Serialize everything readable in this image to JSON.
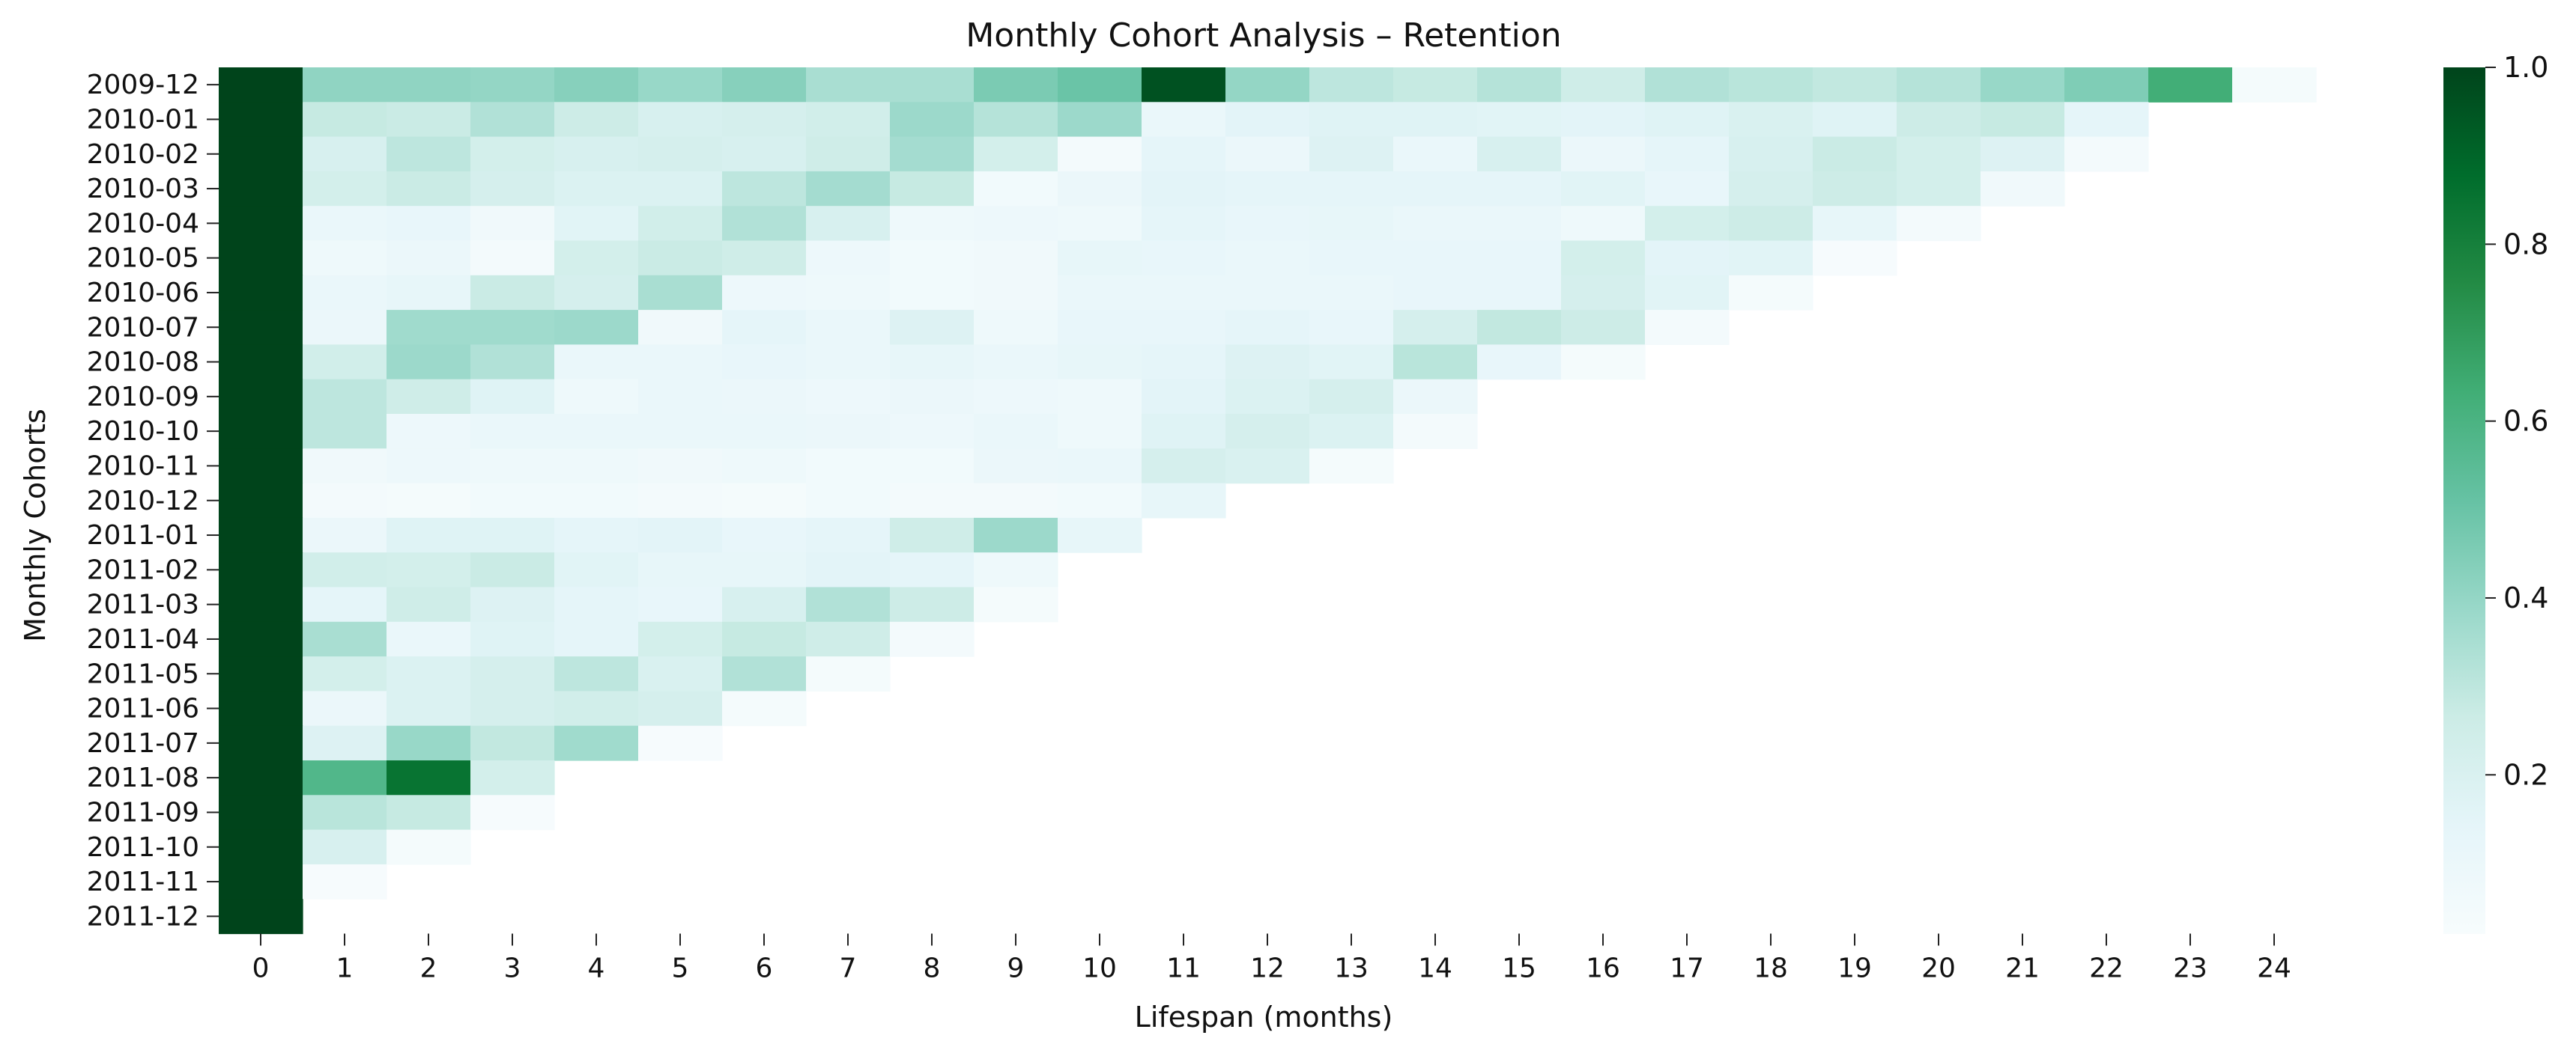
{
  "chart_data": {
    "type": "heatmap",
    "title": "Monthly Cohort Analysis – Retention",
    "xlabel": "Lifespan (months)",
    "ylabel": "Monthly Cohorts",
    "x": [
      "0",
      "1",
      "2",
      "3",
      "4",
      "5",
      "6",
      "7",
      "8",
      "9",
      "10",
      "11",
      "12",
      "13",
      "14",
      "15",
      "16",
      "17",
      "18",
      "19",
      "20",
      "21",
      "22",
      "23",
      "24"
    ],
    "y": [
      "2009-12",
      "2010-01",
      "2010-02",
      "2010-03",
      "2010-04",
      "2010-05",
      "2010-06",
      "2010-07",
      "2010-08",
      "2010-09",
      "2010-10",
      "2010-11",
      "2010-12",
      "2011-01",
      "2011-02",
      "2011-03",
      "2011-04",
      "2011-05",
      "2011-06",
      "2011-07",
      "2011-08",
      "2011-09",
      "2011-10",
      "2011-11",
      "2011-12"
    ],
    "values": [
      [
        1.0,
        0.41,
        0.41,
        0.4,
        0.43,
        0.39,
        0.43,
        0.35,
        0.35,
        0.46,
        0.5,
        0.96,
        0.4,
        0.3,
        0.28,
        0.32,
        0.25,
        0.33,
        0.31,
        0.29,
        0.32,
        0.39,
        0.45,
        0.63,
        0.04
      ],
      [
        1.0,
        0.28,
        0.27,
        0.33,
        0.26,
        0.21,
        0.22,
        0.24,
        0.38,
        0.32,
        0.38,
        0.11,
        0.15,
        0.17,
        0.17,
        0.16,
        0.15,
        0.17,
        0.2,
        0.17,
        0.26,
        0.28,
        0.14
      ],
      [
        1.0,
        0.21,
        0.3,
        0.23,
        0.21,
        0.22,
        0.21,
        0.25,
        0.36,
        0.23,
        0.05,
        0.14,
        0.1,
        0.18,
        0.11,
        0.21,
        0.1,
        0.14,
        0.21,
        0.27,
        0.23,
        0.18,
        0.05
      ],
      [
        1.0,
        0.23,
        0.27,
        0.22,
        0.19,
        0.19,
        0.3,
        0.36,
        0.28,
        0.06,
        0.1,
        0.15,
        0.14,
        0.14,
        0.14,
        0.14,
        0.16,
        0.12,
        0.22,
        0.26,
        0.23,
        0.07
      ],
      [
        1.0,
        0.11,
        0.12,
        0.07,
        0.16,
        0.24,
        0.33,
        0.21,
        0.08,
        0.09,
        0.08,
        0.14,
        0.12,
        0.13,
        0.11,
        0.11,
        0.08,
        0.23,
        0.26,
        0.13,
        0.05
      ],
      [
        1.0,
        0.08,
        0.1,
        0.05,
        0.23,
        0.27,
        0.25,
        0.09,
        0.06,
        0.07,
        0.13,
        0.12,
        0.11,
        0.12,
        0.12,
        0.12,
        0.23,
        0.15,
        0.16,
        0.03
      ],
      [
        1.0,
        0.11,
        0.13,
        0.27,
        0.22,
        0.35,
        0.09,
        0.08,
        0.06,
        0.07,
        0.11,
        0.11,
        0.11,
        0.11,
        0.12,
        0.12,
        0.22,
        0.16,
        0.04
      ],
      [
        1.0,
        0.1,
        0.37,
        0.37,
        0.38,
        0.07,
        0.14,
        0.11,
        0.18,
        0.08,
        0.12,
        0.12,
        0.14,
        0.12,
        0.22,
        0.29,
        0.26,
        0.05
      ],
      [
        1.0,
        0.24,
        0.38,
        0.33,
        0.11,
        0.11,
        0.12,
        0.11,
        0.13,
        0.11,
        0.13,
        0.14,
        0.18,
        0.16,
        0.31,
        0.12,
        0.04
      ],
      [
        1.0,
        0.3,
        0.25,
        0.17,
        0.08,
        0.11,
        0.1,
        0.09,
        0.1,
        0.09,
        0.08,
        0.15,
        0.19,
        0.22,
        0.1
      ],
      [
        1.0,
        0.3,
        0.09,
        0.11,
        0.11,
        0.11,
        0.11,
        0.1,
        0.09,
        0.11,
        0.08,
        0.17,
        0.22,
        0.19,
        0.05
      ],
      [
        1.0,
        0.07,
        0.09,
        0.08,
        0.08,
        0.07,
        0.08,
        0.06,
        0.06,
        0.1,
        0.11,
        0.22,
        0.2,
        0.04
      ],
      [
        1.0,
        0.05,
        0.04,
        0.06,
        0.06,
        0.05,
        0.04,
        0.06,
        0.05,
        0.05,
        0.06,
        0.13
      ],
      [
        1.0,
        0.1,
        0.17,
        0.17,
        0.14,
        0.15,
        0.12,
        0.14,
        0.25,
        0.38,
        0.13
      ],
      [
        1.0,
        0.24,
        0.23,
        0.27,
        0.16,
        0.13,
        0.13,
        0.15,
        0.14,
        0.08
      ],
      [
        1.0,
        0.14,
        0.25,
        0.18,
        0.14,
        0.12,
        0.21,
        0.33,
        0.26,
        0.04
      ],
      [
        1.0,
        0.35,
        0.11,
        0.17,
        0.14,
        0.23,
        0.28,
        0.25,
        0.05
      ],
      [
        1.0,
        0.23,
        0.19,
        0.22,
        0.3,
        0.2,
        0.33,
        0.04
      ],
      [
        1.0,
        0.1,
        0.19,
        0.22,
        0.24,
        0.22,
        0.04
      ],
      [
        1.0,
        0.18,
        0.39,
        0.29,
        0.37,
        0.03
      ],
      [
        1.0,
        0.58,
        0.85,
        0.23
      ],
      [
        1.0,
        0.31,
        0.28,
        0.03
      ],
      [
        1.0,
        0.21,
        0.04
      ],
      [
        1.0,
        0.03
      ],
      [
        1.0
      ]
    ],
    "color_scale": "Greens",
    "colorbar_ticks": [
      "0.2",
      "0.4",
      "0.6",
      "0.8",
      "1.0"
    ],
    "colorbar_range": [
      0.02,
      1.0
    ],
    "grid": false,
    "legend": "colorbar-right"
  }
}
